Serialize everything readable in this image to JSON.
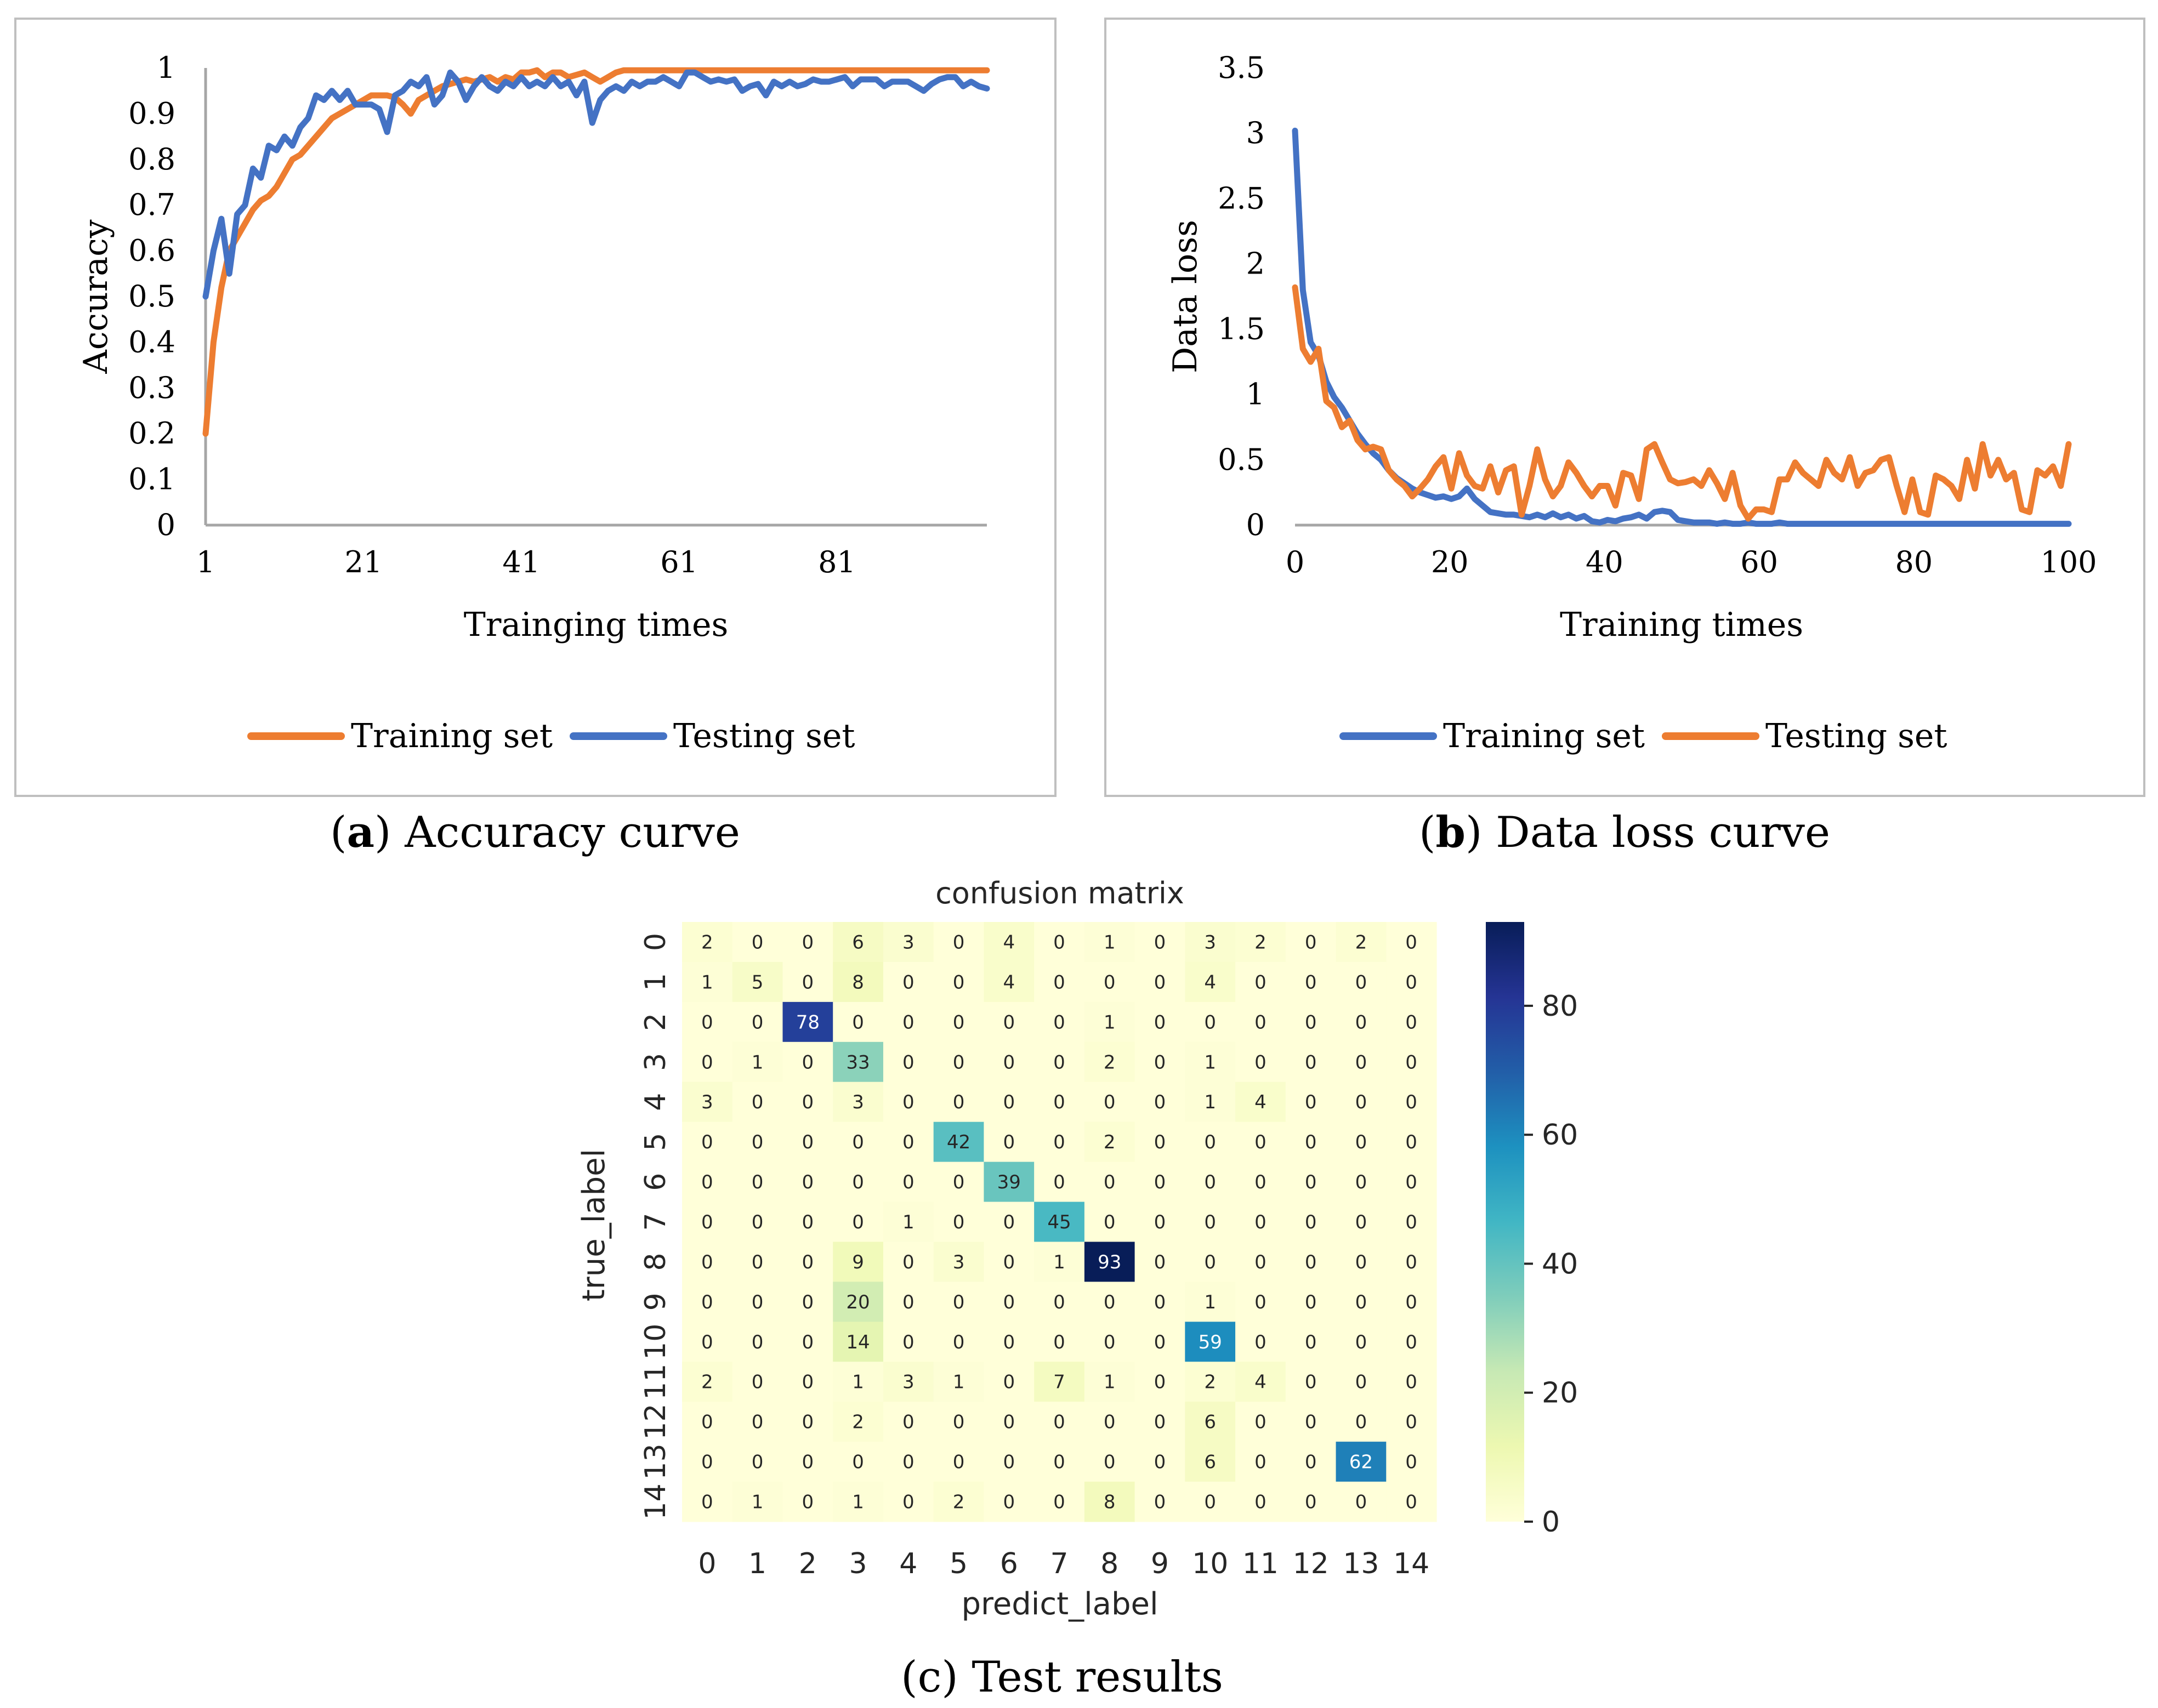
{
  "panels": {
    "a": {
      "letter": "a",
      "caption": "Accuracy curve",
      "chart_data": {
        "type": "line",
        "ylabel": "Accuracy",
        "xlabel": "Trainging times",
        "ylim": [
          0,
          1
        ],
        "xlim": [
          1,
          100
        ],
        "yticks": [
          "0",
          "0.1",
          "0.2",
          "0.3",
          "0.4",
          "0.5",
          "0.6",
          "0.7",
          "0.8",
          "0.9",
          "1"
        ],
        "xticks": [
          "1",
          "21",
          "41",
          "61",
          "81"
        ],
        "legend": [
          "Training set",
          "Testing set"
        ],
        "series": [
          {
            "name": "Training set",
            "color": "#ED7D31",
            "values": [
              0.2,
              0.4,
              0.52,
              0.6,
              0.63,
              0.66,
              0.69,
              0.71,
              0.72,
              0.74,
              0.77,
              0.8,
              0.81,
              0.83,
              0.85,
              0.87,
              0.89,
              0.9,
              0.91,
              0.92,
              0.93,
              0.94,
              0.94,
              0.94,
              0.935,
              0.92,
              0.9,
              0.93,
              0.94,
              0.95,
              0.96,
              0.965,
              0.97,
              0.975,
              0.97,
              0.975,
              0.98,
              0.97,
              0.98,
              0.975,
              0.99,
              0.99,
              0.995,
              0.98,
              0.99,
              0.99,
              0.98,
              0.985,
              0.99,
              0.98,
              0.97,
              0.98,
              0.99,
              0.995,
              0.995,
              0.995,
              0.995,
              0.995,
              0.995,
              0.995,
              0.995,
              0.995,
              0.995,
              0.995,
              0.995,
              0.995,
              0.995,
              0.995,
              0.995,
              0.995,
              0.995,
              0.995,
              0.995,
              0.995,
              0.995,
              0.995,
              0.995,
              0.995,
              0.995,
              0.995,
              0.995,
              0.995,
              0.995,
              0.995,
              0.995,
              0.995,
              0.995,
              0.995,
              0.995,
              0.995,
              0.995,
              0.995,
              0.995,
              0.995,
              0.995,
              0.995,
              0.995,
              0.995,
              0.995,
              0.995
            ]
          },
          {
            "name": "Testing set",
            "color": "#4472C4",
            "values": [
              0.5,
              0.6,
              0.67,
              0.55,
              0.68,
              0.7,
              0.78,
              0.76,
              0.83,
              0.82,
              0.85,
              0.83,
              0.87,
              0.89,
              0.94,
              0.93,
              0.95,
              0.93,
              0.95,
              0.92,
              0.92,
              0.92,
              0.91,
              0.86,
              0.94,
              0.95,
              0.97,
              0.96,
              0.98,
              0.92,
              0.94,
              0.99,
              0.97,
              0.93,
              0.96,
              0.98,
              0.96,
              0.95,
              0.97,
              0.96,
              0.98,
              0.96,
              0.97,
              0.96,
              0.98,
              0.96,
              0.97,
              0.94,
              0.97,
              0.88,
              0.93,
              0.95,
              0.96,
              0.95,
              0.97,
              0.96,
              0.97,
              0.97,
              0.98,
              0.97,
              0.96,
              0.99,
              0.99,
              0.98,
              0.97,
              0.975,
              0.97,
              0.975,
              0.95,
              0.96,
              0.965,
              0.94,
              0.97,
              0.96,
              0.97,
              0.96,
              0.965,
              0.975,
              0.97,
              0.97,
              0.975,
              0.98,
              0.96,
              0.975,
              0.975,
              0.975,
              0.96,
              0.97,
              0.97,
              0.97,
              0.96,
              0.95,
              0.965,
              0.975,
              0.98,
              0.98,
              0.96,
              0.97,
              0.96,
              0.955
            ]
          }
        ]
      }
    },
    "b": {
      "letter": "b",
      "caption": "Data loss curve",
      "chart_data": {
        "type": "line",
        "ylabel": "Data loss",
        "xlabel": "Training times",
        "ylim": [
          0,
          3.5
        ],
        "xlim": [
          0,
          100
        ],
        "yticks": [
          "0",
          "0.5",
          "1",
          "1.5",
          "2",
          "2.5",
          "3",
          "3.5"
        ],
        "xticks": [
          "0",
          "20",
          "40",
          "60",
          "80",
          "100"
        ],
        "legend": [
          "Training set",
          "Testing set"
        ],
        "series": [
          {
            "name": "Training set",
            "color": "#4472C4",
            "values": [
              3.02,
              1.8,
              1.4,
              1.3,
              1.1,
              0.98,
              0.9,
              0.8,
              0.7,
              0.62,
              0.55,
              0.5,
              0.42,
              0.36,
              0.32,
              0.28,
              0.25,
              0.23,
              0.21,
              0.22,
              0.2,
              0.22,
              0.28,
              0.2,
              0.15,
              0.1,
              0.09,
              0.08,
              0.08,
              0.07,
              0.06,
              0.08,
              0.06,
              0.09,
              0.06,
              0.08,
              0.05,
              0.07,
              0.03,
              0.02,
              0.04,
              0.03,
              0.05,
              0.06,
              0.08,
              0.05,
              0.1,
              0.11,
              0.1,
              0.04,
              0.03,
              0.02,
              0.02,
              0.02,
              0.01,
              0.02,
              0.01,
              0.01,
              0.02,
              0.01,
              0.01,
              0.01,
              0.02,
              0.01,
              0.01,
              0.01,
              0.01,
              0.01,
              0.01,
              0.01,
              0.01,
              0.01,
              0.01,
              0.01,
              0.01,
              0.01,
              0.01,
              0.01,
              0.01,
              0.01,
              0.01,
              0.01,
              0.01,
              0.01,
              0.01,
              0.01,
              0.01,
              0.01,
              0.01,
              0.01,
              0.01,
              0.01,
              0.01,
              0.01,
              0.01,
              0.01,
              0.01,
              0.01,
              0.01,
              0.01
            ]
          },
          {
            "name": "Testing set",
            "color": "#ED7D31",
            "values": [
              1.82,
              1.35,
              1.25,
              1.35,
              0.95,
              0.9,
              0.75,
              0.8,
              0.65,
              0.58,
              0.6,
              0.58,
              0.42,
              0.35,
              0.3,
              0.22,
              0.28,
              0.35,
              0.45,
              0.52,
              0.28,
              0.55,
              0.38,
              0.3,
              0.28,
              0.45,
              0.25,
              0.42,
              0.45,
              0.08,
              0.3,
              0.58,
              0.35,
              0.22,
              0.3,
              0.48,
              0.4,
              0.3,
              0.22,
              0.3,
              0.3,
              0.15,
              0.4,
              0.38,
              0.2,
              0.58,
              0.62,
              0.48,
              0.35,
              0.32,
              0.33,
              0.35,
              0.3,
              0.42,
              0.32,
              0.2,
              0.4,
              0.15,
              0.05,
              0.12,
              0.12,
              0.1,
              0.35,
              0.35,
              0.48,
              0.4,
              0.35,
              0.3,
              0.5,
              0.4,
              0.35,
              0.52,
              0.3,
              0.4,
              0.42,
              0.5,
              0.52,
              0.3,
              0.1,
              0.35,
              0.1,
              0.08,
              0.38,
              0.35,
              0.3,
              0.2,
              0.5,
              0.28,
              0.62,
              0.38,
              0.5,
              0.35,
              0.4,
              0.12,
              0.1,
              0.42,
              0.38,
              0.45,
              0.3,
              0.62
            ]
          }
        ]
      }
    },
    "c": {
      "letter": "c",
      "caption": "Test results",
      "chart_data": {
        "type": "heatmap",
        "title": "confusion matrix",
        "xlabel": "predict_label",
        "ylabel": "true_label",
        "labels": [
          "0",
          "1",
          "2",
          "3",
          "4",
          "5",
          "6",
          "7",
          "8",
          "9",
          "10",
          "11",
          "12",
          "13",
          "14"
        ],
        "vmin": 0,
        "vmax": 93,
        "colorbar_ticks": [
          0,
          20,
          40,
          60,
          80
        ],
        "matrix": [
          [
            2,
            0,
            0,
            6,
            3,
            0,
            4,
            0,
            1,
            0,
            3,
            2,
            0,
            2,
            0
          ],
          [
            1,
            5,
            0,
            8,
            0,
            0,
            4,
            0,
            0,
            0,
            4,
            0,
            0,
            0,
            0
          ],
          [
            0,
            0,
            78,
            0,
            0,
            0,
            0,
            0,
            1,
            0,
            0,
            0,
            0,
            0,
            0
          ],
          [
            0,
            1,
            0,
            33,
            0,
            0,
            0,
            0,
            2,
            0,
            1,
            0,
            0,
            0,
            0
          ],
          [
            3,
            0,
            0,
            3,
            0,
            0,
            0,
            0,
            0,
            0,
            1,
            4,
            0,
            0,
            0
          ],
          [
            0,
            0,
            0,
            0,
            0,
            42,
            0,
            0,
            2,
            0,
            0,
            0,
            0,
            0,
            0
          ],
          [
            0,
            0,
            0,
            0,
            0,
            0,
            39,
            0,
            0,
            0,
            0,
            0,
            0,
            0,
            0
          ],
          [
            0,
            0,
            0,
            0,
            1,
            0,
            0,
            45,
            0,
            0,
            0,
            0,
            0,
            0,
            0
          ],
          [
            0,
            0,
            0,
            9,
            0,
            3,
            0,
            1,
            93,
            0,
            0,
            0,
            0,
            0,
            0
          ],
          [
            0,
            0,
            0,
            20,
            0,
            0,
            0,
            0,
            0,
            0,
            1,
            0,
            0,
            0,
            0
          ],
          [
            0,
            0,
            0,
            14,
            0,
            0,
            0,
            0,
            0,
            0,
            59,
            0,
            0,
            0,
            0
          ],
          [
            2,
            0,
            0,
            1,
            3,
            1,
            0,
            7,
            1,
            0,
            2,
            4,
            0,
            0,
            0
          ],
          [
            0,
            0,
            0,
            2,
            0,
            0,
            0,
            0,
            0,
            0,
            6,
            0,
            0,
            0,
            0
          ],
          [
            0,
            0,
            0,
            0,
            0,
            0,
            0,
            0,
            0,
            0,
            6,
            0,
            0,
            62,
            0
          ],
          [
            0,
            1,
            0,
            1,
            0,
            2,
            0,
            0,
            8,
            0,
            0,
            0,
            0,
            0,
            0
          ]
        ]
      }
    }
  },
  "colors": {
    "frame": "#BFBFBF",
    "axis": "#A6A6A6",
    "text": "#000000",
    "heat_low": "#FFFFD9",
    "heat_high": "#081D58"
  }
}
